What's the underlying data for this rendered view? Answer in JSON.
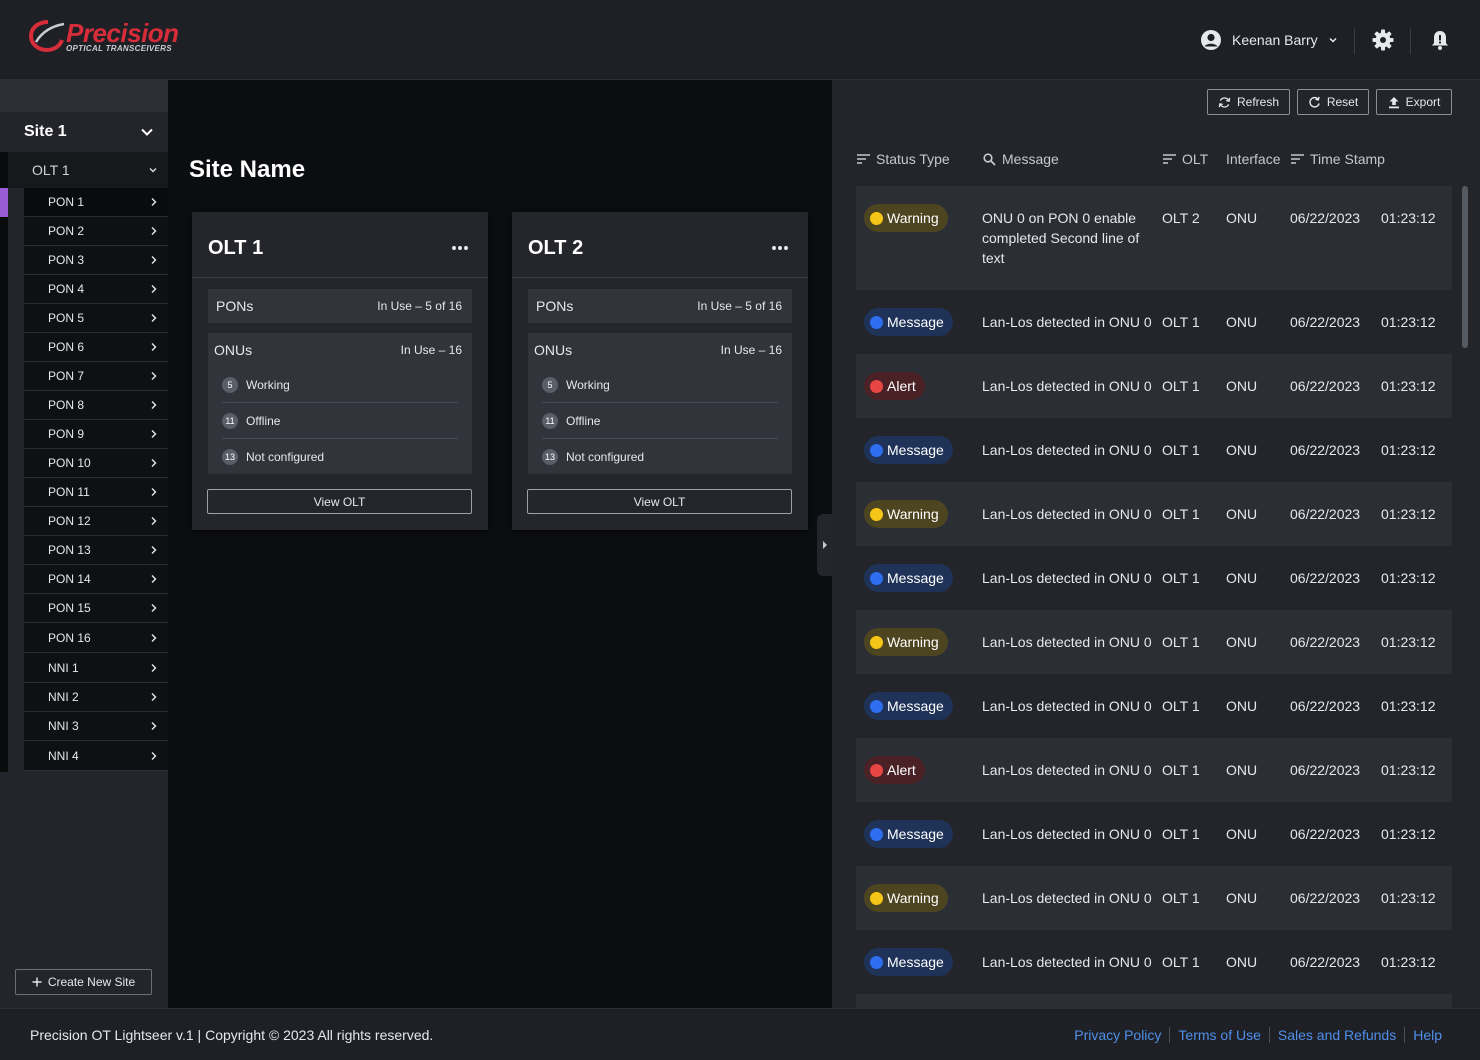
{
  "brand": {
    "name": "Precision",
    "tagline": "OPTICAL TRANSCEIVERS",
    "color": "#d72d3a"
  },
  "header": {
    "user_name": "Keenan Barry"
  },
  "sidebar": {
    "site_label": "Site 1",
    "olt_label": "OLT 1",
    "items": [
      "PON 1",
      "PON 2",
      "PON 3",
      "PON 4",
      "PON 5",
      "PON 6",
      "PON 7",
      "PON 8",
      "PON 9",
      "PON 10",
      "PON 11",
      "PON 12",
      "PON 13",
      "PON 14",
      "PON 15",
      "PON 16",
      "NNI 1",
      "NNI 2",
      "NNI 3",
      "NNI 4"
    ],
    "active_item": "PON 1",
    "active_color": "#9a5bd6",
    "create_label": "Create New Site"
  },
  "main": {
    "title": "Site Name",
    "cards": [
      {
        "title": "OLT 1",
        "pons_label": "PONs",
        "pons_usage": "In Use – 5 of 16",
        "onus_label": "ONUs",
        "onus_usage": "In Use – 16",
        "working_count": "5",
        "working_label": "Working",
        "offline_count": "11",
        "offline_label": "Offline",
        "notconf_count": "13",
        "notconf_label": "Not configured",
        "button": "View OLT"
      },
      {
        "title": "OLT 2",
        "pons_label": "PONs",
        "pons_usage": "In Use – 5 of 16",
        "onus_label": "ONUs",
        "onus_usage": "In Use – 16",
        "working_count": "5",
        "working_label": "Working",
        "offline_count": "11",
        "offline_label": "Offline",
        "notconf_count": "13",
        "notconf_label": "Not configured",
        "button": "View OLT"
      }
    ]
  },
  "log_panel": {
    "buttons": {
      "refresh": "Refresh",
      "reset": "Reset",
      "export": "Export"
    },
    "columns": {
      "status": "Status Type",
      "message": "Message",
      "olt": "OLT",
      "interface": "Interface",
      "timestamp": "Time Stamp"
    },
    "status_colors": {
      "Warning": {
        "bg": "#4d4420",
        "dot": "#f5c518"
      },
      "Message": {
        "bg": "#1f3257",
        "dot": "#2f6ef0"
      },
      "Alert": {
        "bg": "#4a2226",
        "dot": "#e84545"
      }
    },
    "rows": [
      {
        "status": "Warning",
        "message": "ONU 0 on PON 0 enable completed Second line of text",
        "olt": "OLT 2",
        "interface": "ONU",
        "date": "06/22/2023",
        "time": "01:23:12"
      },
      {
        "status": "Message",
        "message": "Lan-Los detected in ONU 0",
        "olt": "OLT 1",
        "interface": "ONU",
        "date": "06/22/2023",
        "time": "01:23:12"
      },
      {
        "status": "Alert",
        "message": "Lan-Los detected in ONU 0",
        "olt": "OLT 1",
        "interface": "ONU",
        "date": "06/22/2023",
        "time": "01:23:12"
      },
      {
        "status": "Message",
        "message": "Lan-Los detected in ONU 0",
        "olt": "OLT 1",
        "interface": "ONU",
        "date": "06/22/2023",
        "time": "01:23:12"
      },
      {
        "status": "Warning",
        "message": "Lan-Los detected in ONU 0",
        "olt": "OLT 1",
        "interface": "ONU",
        "date": "06/22/2023",
        "time": "01:23:12"
      },
      {
        "status": "Message",
        "message": "Lan-Los detected in ONU 0",
        "olt": "OLT 1",
        "interface": "ONU",
        "date": "06/22/2023",
        "time": "01:23:12"
      },
      {
        "status": "Warning",
        "message": "Lan-Los detected in ONU 0",
        "olt": "OLT 1",
        "interface": "ONU",
        "date": "06/22/2023",
        "time": "01:23:12"
      },
      {
        "status": "Message",
        "message": "Lan-Los detected in ONU 0",
        "olt": "OLT 1",
        "interface": "ONU",
        "date": "06/22/2023",
        "time": "01:23:12"
      },
      {
        "status": "Alert",
        "message": "Lan-Los detected in ONU 0",
        "olt": "OLT 1",
        "interface": "ONU",
        "date": "06/22/2023",
        "time": "01:23:12"
      },
      {
        "status": "Message",
        "message": "Lan-Los detected in ONU 0",
        "olt": "OLT 1",
        "interface": "ONU",
        "date": "06/22/2023",
        "time": "01:23:12"
      },
      {
        "status": "Warning",
        "message": "Lan-Los detected in ONU 0",
        "olt": "OLT 1",
        "interface": "ONU",
        "date": "06/22/2023",
        "time": "01:23:12"
      },
      {
        "status": "Message",
        "message": "Lan-Los detected in ONU 0",
        "olt": "OLT 1",
        "interface": "ONU",
        "date": "06/22/2023",
        "time": "01:23:12"
      }
    ]
  },
  "footer": {
    "copyright": "Precision OT Lightseer v.1 |  Copyright © 2023  All rights reserved.",
    "links": [
      "Privacy Policy",
      "Terms of Use",
      "Sales and Refunds",
      "Help"
    ]
  }
}
